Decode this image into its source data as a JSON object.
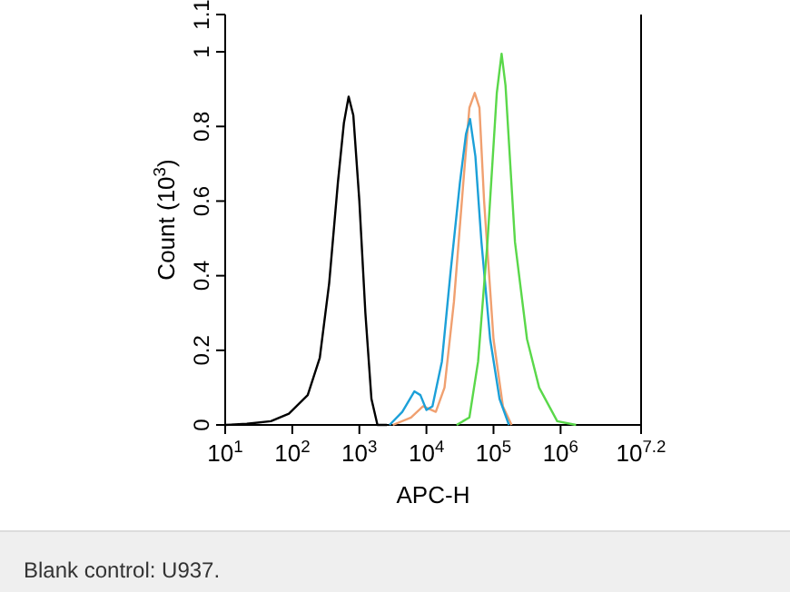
{
  "chart_data": {
    "type": "line",
    "xlabel": "APC-H",
    "ylabel": "Count (10$^{3}$)",
    "log": "x",
    "xlim": [
      10,
      15848932
    ],
    "xticks": [
      {
        "value": 10,
        "label": "10$^{1}$"
      },
      {
        "value": 100,
        "label": "10$^{2}$"
      },
      {
        "value": 1000,
        "label": "10$^{3}$"
      },
      {
        "value": 10000,
        "label": "10$^{4}$"
      },
      {
        "value": 100000,
        "label": "10$^{5}$"
      },
      {
        "value": 1000000,
        "label": "10$^{6}$"
      },
      {
        "value": 15848932,
        "label": "10$^{7.2}$"
      }
    ],
    "ylim": [
      0,
      1.1
    ],
    "yticks": [
      0,
      0.2,
      0.4,
      0.6,
      0.8,
      1,
      1.1
    ],
    "grid": false,
    "marker": "none",
    "line_style": "solid",
    "series": [
      {
        "color": "#000000",
        "x": [
          10,
          21,
          48,
          89,
          170,
          257,
          355,
          479,
          589,
          692,
          813,
          1000,
          1230,
          1514,
          1862,
          2570
        ],
        "values": [
          0,
          0.003,
          0.01,
          0.03,
          0.08,
          0.18,
          0.38,
          0.65,
          0.81,
          0.88,
          0.83,
          0.6,
          0.3,
          0.07,
          0,
          0
        ]
      },
      {
        "color": "#f0a070",
        "x": [
          3162,
          5888,
          8913,
          13800,
          18600,
          25700,
          35500,
          43700,
          52500,
          61700,
          72400,
          100000,
          138000,
          186000
        ],
        "values": [
          0,
          0.02,
          0.05,
          0.035,
          0.1,
          0.33,
          0.65,
          0.85,
          0.89,
          0.85,
          0.6,
          0.23,
          0.05,
          0
        ]
      },
      {
        "color": "#1ca0d8",
        "x": [
          2818,
          4365,
          6607,
          8128,
          10000,
          12300,
          17000,
          22900,
          31600,
          38900,
          44700,
          53700,
          66100,
          89100,
          123000,
          170000
        ],
        "values": [
          0,
          0.035,
          0.09,
          0.08,
          0.04,
          0.05,
          0.17,
          0.41,
          0.65,
          0.78,
          0.82,
          0.72,
          0.49,
          0.23,
          0.07,
          0
        ]
      },
      {
        "color": "#5ad84a",
        "x": [
          28200,
          43700,
          58900,
          81300,
          112000,
          132000,
          151000,
          209000,
          316000,
          479000,
          891000,
          1700000
        ],
        "values": [
          0,
          0.02,
          0.17,
          0.49,
          0.89,
          0.995,
          0.91,
          0.49,
          0.23,
          0.1,
          0.01,
          0
        ]
      }
    ],
    "annotations": [
      "Blank control: U937."
    ]
  }
}
